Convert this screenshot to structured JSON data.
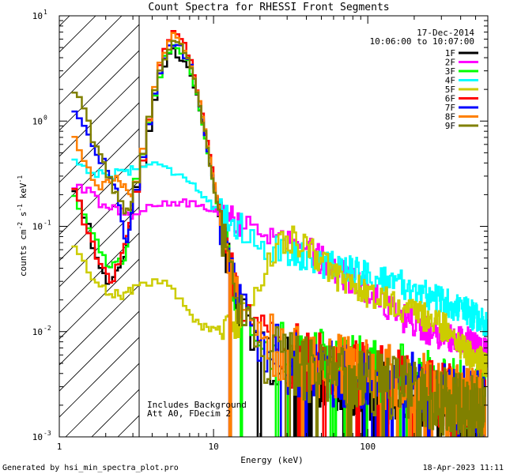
{
  "chart_data": {
    "type": "line",
    "title": "Count Spectra for RHESSI Front Segments",
    "xlabel": "Energy (keV)",
    "ylabel_parts": [
      "counts cm",
      "-2",
      " s",
      "-1",
      " keV",
      "-1"
    ],
    "xscale": "log",
    "yscale": "log",
    "xlim": [
      1,
      600
    ],
    "ylim": [
      0.001,
      10
    ],
    "x_ticks": [
      {
        "value": 1,
        "label": "1"
      },
      {
        "value": 10,
        "label": "10"
      },
      {
        "value": 100,
        "label": "100"
      }
    ],
    "y_ticks": [
      {
        "value": 0.001,
        "base": "10",
        "exp": "-3"
      },
      {
        "value": 0.01,
        "base": "10",
        "exp": "-2"
      },
      {
        "value": 0.1,
        "base": "10",
        "exp": "-1"
      },
      {
        "value": 1,
        "base": "10",
        "exp": "0"
      },
      {
        "value": 10,
        "base": "10",
        "exp": "1"
      }
    ],
    "date": "17-Dec-2014",
    "time_range": "10:06:00 to 10:07:00",
    "shaded_region_below_keV": 3,
    "annotations": [
      "Includes Background",
      "Att A0, FDecim 2"
    ],
    "footer_left": "Generated by hsi_min_spectra_plot.pro",
    "footer_right": "18-Apr-2023 11:11",
    "series": [
      {
        "name": "1F",
        "color": "#000000",
        "kind": "thermal",
        "points": [
          [
            1.2,
            0.26
          ],
          [
            1.5,
            0.12
          ],
          [
            1.8,
            0.04
          ],
          [
            2.2,
            0.028
          ],
          [
            2.7,
            0.06
          ],
          [
            3,
            0.16
          ],
          [
            3.5,
            0.4
          ],
          [
            4,
            1.2
          ],
          [
            4.5,
            2.6
          ],
          [
            5,
            4.1
          ],
          [
            5.5,
            4.5
          ],
          [
            6,
            4.3
          ],
          [
            7,
            3.0
          ],
          [
            8,
            1.5
          ],
          [
            9,
            0.6
          ],
          [
            10,
            0.25
          ],
          [
            11,
            0.12
          ],
          [
            12,
            0.06
          ],
          [
            14,
            0.02
          ],
          [
            17,
            0.01
          ],
          [
            20,
            0.007
          ],
          [
            30,
            0.005
          ],
          [
            50,
            0.004
          ],
          [
            100,
            0.003
          ],
          [
            200,
            0.0025
          ],
          [
            300,
            0.002
          ],
          [
            580,
            0.0015
          ]
        ]
      },
      {
        "name": "2F",
        "color": "#ff00ff",
        "kind": "flat",
        "points": [
          [
            1.2,
            0.24
          ],
          [
            1.5,
            0.22
          ],
          [
            2,
            0.15
          ],
          [
            2.5,
            0.14
          ],
          [
            3,
            0.13
          ],
          [
            3.5,
            0.14
          ],
          [
            4,
            0.15
          ],
          [
            5,
            0.16
          ],
          [
            6,
            0.17
          ],
          [
            8,
            0.16
          ],
          [
            10,
            0.15
          ],
          [
            13,
            0.12
          ],
          [
            15,
            0.11
          ],
          [
            20,
            0.09
          ],
          [
            30,
            0.07
          ],
          [
            40,
            0.06
          ],
          [
            60,
            0.04
          ],
          [
            100,
            0.025
          ],
          [
            150,
            0.015
          ],
          [
            200,
            0.012
          ],
          [
            300,
            0.009
          ],
          [
            450,
            0.008
          ],
          [
            600,
            0.006
          ]
        ]
      },
      {
        "name": "3F",
        "color": "#00ff00",
        "kind": "thermal",
        "points": [
          [
            1.2,
            0.22
          ],
          [
            1.5,
            0.12
          ],
          [
            1.8,
            0.06
          ],
          [
            2.2,
            0.04
          ],
          [
            2.7,
            0.05
          ],
          [
            3,
            0.2
          ],
          [
            3.5,
            0.45
          ],
          [
            4,
            1.3
          ],
          [
            4.5,
            2.8
          ],
          [
            5,
            4.6
          ],
          [
            5.5,
            5.4
          ],
          [
            6,
            5.1
          ],
          [
            7,
            3.5
          ],
          [
            8,
            1.5
          ],
          [
            9,
            0.6
          ],
          [
            10,
            0.25
          ],
          [
            11,
            0.12
          ],
          [
            12,
            0.06
          ],
          [
            14,
            0.02
          ],
          [
            17,
            0.012
          ],
          [
            20,
            0.008
          ],
          [
            30,
            0.006
          ],
          [
            50,
            0.005
          ],
          [
            100,
            0.0042
          ],
          [
            200,
            0.0035
          ],
          [
            300,
            0.003
          ],
          [
            580,
            0.0022
          ]
        ]
      },
      {
        "name": "4F",
        "color": "#00ffff",
        "kind": "flat",
        "points": [
          [
            1.2,
            0.45
          ],
          [
            1.5,
            0.35
          ],
          [
            2,
            0.3
          ],
          [
            2.5,
            0.33
          ],
          [
            3,
            0.35
          ],
          [
            3.5,
            0.38
          ],
          [
            4,
            0.4
          ],
          [
            5,
            0.35
          ],
          [
            6,
            0.32
          ],
          [
            7,
            0.28
          ],
          [
            8,
            0.22
          ],
          [
            10,
            0.15
          ],
          [
            12,
            0.12
          ],
          [
            15,
            0.1
          ],
          [
            20,
            0.07
          ],
          [
            25,
            0.06
          ],
          [
            30,
            0.06
          ],
          [
            40,
            0.05
          ],
          [
            50,
            0.045
          ],
          [
            70,
            0.04
          ],
          [
            100,
            0.035
          ],
          [
            150,
            0.03
          ],
          [
            200,
            0.025
          ],
          [
            300,
            0.02
          ],
          [
            450,
            0.015
          ],
          [
            600,
            0.012
          ]
        ]
      },
      {
        "name": "5F",
        "color": "#cccc00",
        "kind": "flat",
        "points": [
          [
            1.2,
            0.07
          ],
          [
            1.5,
            0.04
          ],
          [
            2,
            0.025
          ],
          [
            2.5,
            0.022
          ],
          [
            3,
            0.025
          ],
          [
            3.5,
            0.028
          ],
          [
            4,
            0.03
          ],
          [
            5,
            0.03
          ],
          [
            6,
            0.02
          ],
          [
            7,
            0.015
          ],
          [
            8,
            0.012
          ],
          [
            10,
            0.01
          ],
          [
            15,
            0.012
          ],
          [
            20,
            0.03
          ],
          [
            25,
            0.06
          ],
          [
            30,
            0.08
          ],
          [
            35,
            0.07
          ],
          [
            40,
            0.06
          ],
          [
            50,
            0.05
          ],
          [
            60,
            0.035
          ],
          [
            80,
            0.028
          ],
          [
            100,
            0.022
          ],
          [
            130,
            0.02
          ],
          [
            180,
            0.016
          ],
          [
            250,
            0.013
          ],
          [
            350,
            0.01
          ],
          [
            450,
            0.006
          ],
          [
            600,
            0.005
          ]
        ]
      },
      {
        "name": "6F",
        "color": "#ff0000",
        "kind": "thermal",
        "points": [
          [
            1.2,
            0.26
          ],
          [
            1.5,
            0.1
          ],
          [
            1.8,
            0.045
          ],
          [
            2.2,
            0.03
          ],
          [
            2.7,
            0.07
          ],
          [
            3,
            0.15
          ],
          [
            3.5,
            0.45
          ],
          [
            4,
            1.4
          ],
          [
            4.5,
            3.2
          ],
          [
            5,
            6.0
          ],
          [
            5.5,
            7.2
          ],
          [
            6,
            6.6
          ],
          [
            7,
            4.2
          ],
          [
            8,
            1.8
          ],
          [
            9,
            0.7
          ],
          [
            10,
            0.3
          ],
          [
            11,
            0.13
          ],
          [
            12,
            0.06
          ],
          [
            14,
            0.025
          ],
          [
            17,
            0.012
          ],
          [
            20,
            0.008
          ],
          [
            30,
            0.006
          ],
          [
            50,
            0.0048
          ],
          [
            100,
            0.0038
          ],
          [
            200,
            0.003
          ],
          [
            300,
            0.0025
          ],
          [
            580,
            0.0018
          ]
        ]
      },
      {
        "name": "7F",
        "color": "#0000ff",
        "kind": "thermal",
        "points": [
          [
            1.2,
            1.2
          ],
          [
            1.4,
            1.1
          ],
          [
            1.7,
            0.5
          ],
          [
            2,
            0.4
          ],
          [
            2.3,
            0.25
          ],
          [
            2.7,
            0.06
          ],
          [
            3,
            0.14
          ],
          [
            3.5,
            0.45
          ],
          [
            4,
            1.3
          ],
          [
            4.5,
            2.9
          ],
          [
            5,
            4.8
          ],
          [
            5.5,
            5.5
          ],
          [
            6,
            5.2
          ],
          [
            7,
            3.6
          ],
          [
            8,
            1.6
          ],
          [
            9,
            0.65
          ],
          [
            10,
            0.26
          ],
          [
            11,
            0.12
          ],
          [
            12,
            0.06
          ],
          [
            14,
            0.022
          ],
          [
            17,
            0.011
          ],
          [
            20,
            0.007
          ],
          [
            30,
            0.005
          ],
          [
            50,
            0.0042
          ],
          [
            100,
            0.0035
          ],
          [
            200,
            0.003
          ],
          [
            300,
            0.0025
          ],
          [
            580,
            0.002
          ]
        ]
      },
      {
        "name": "8F",
        "color": "#ff8000",
        "kind": "thermal",
        "points": [
          [
            1.2,
            0.75
          ],
          [
            1.5,
            0.38
          ],
          [
            1.8,
            0.22
          ],
          [
            2.2,
            0.3
          ],
          [
            2.7,
            0.22
          ],
          [
            3,
            0.2
          ],
          [
            3.5,
            0.5
          ],
          [
            4,
            1.5
          ],
          [
            4.5,
            3.3
          ],
          [
            5,
            5.6
          ],
          [
            5.5,
            6.4
          ],
          [
            6,
            6.0
          ],
          [
            7,
            4.0
          ],
          [
            8,
            1.8
          ],
          [
            9,
            0.7
          ],
          [
            10,
            0.28
          ],
          [
            11,
            0.13
          ],
          [
            12,
            0.06
          ],
          [
            14,
            0.022
          ],
          [
            17,
            0.011
          ],
          [
            20,
            0.008
          ],
          [
            30,
            0.006
          ],
          [
            50,
            0.0048
          ],
          [
            100,
            0.004
          ],
          [
            200,
            0.0032
          ],
          [
            300,
            0.0026
          ],
          [
            580,
            0.002
          ]
        ]
      },
      {
        "name": "9F",
        "color": "#808000",
        "kind": "thermal",
        "points": [
          [
            1.2,
            1.8
          ],
          [
            1.4,
            1.5
          ],
          [
            1.7,
            0.6
          ],
          [
            2,
            0.35
          ],
          [
            2.3,
            0.2
          ],
          [
            2.7,
            0.14
          ],
          [
            3,
            0.17
          ],
          [
            3.5,
            0.5
          ],
          [
            4,
            1.4
          ],
          [
            4.5,
            3.0
          ],
          [
            5,
            4.9
          ],
          [
            5.5,
            5.7
          ],
          [
            6,
            5.4
          ],
          [
            7,
            3.7
          ],
          [
            8,
            1.6
          ],
          [
            9,
            0.65
          ],
          [
            10,
            0.26
          ],
          [
            11,
            0.12
          ],
          [
            12,
            0.06
          ],
          [
            14,
            0.022
          ],
          [
            17,
            0.011
          ],
          [
            20,
            0.007
          ],
          [
            30,
            0.005
          ],
          [
            50,
            0.004
          ],
          [
            100,
            0.0034
          ],
          [
            200,
            0.0028
          ],
          [
            300,
            0.0022
          ],
          [
            580,
            0.0017
          ]
        ]
      }
    ]
  }
}
